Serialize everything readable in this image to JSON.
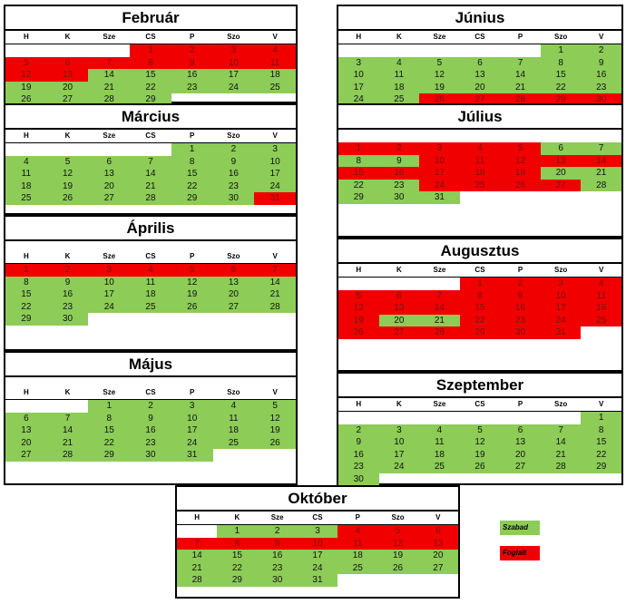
{
  "weekdays": [
    "H",
    "K",
    "Sze",
    "CS",
    "P",
    "Szo",
    "V"
  ],
  "legend": {
    "free_label": "Szabad",
    "busy_label": "Foglalt",
    "free_color": "#8ccc57",
    "busy_color": "#f00000"
  },
  "months": [
    {
      "id": "februar",
      "title": "Február",
      "offset": 3,
      "days": 29,
      "busy": [
        1,
        2,
        3,
        4,
        5,
        6,
        7,
        8,
        9,
        10,
        11,
        12,
        13
      ]
    },
    {
      "id": "marcius",
      "title": "Március",
      "offset": 4,
      "days": 31,
      "busy": [
        31
      ]
    },
    {
      "id": "aprilis",
      "title": "Április",
      "offset": 0,
      "days": 30,
      "busy": [
        1,
        2,
        3,
        4,
        5,
        6,
        7
      ]
    },
    {
      "id": "majus",
      "title": "Május",
      "offset": 2,
      "days": 31,
      "busy": []
    },
    {
      "id": "junius",
      "title": "Június",
      "offset": 5,
      "days": 30,
      "busy": [
        26,
        27,
        28,
        29,
        30
      ]
    },
    {
      "id": "julius",
      "title": "Július",
      "offset": 0,
      "days": 31,
      "busy": [
        1,
        2,
        3,
        4,
        5,
        10,
        11,
        12,
        13,
        14,
        15,
        16,
        17,
        18,
        19,
        24,
        25,
        26,
        27
      ]
    },
    {
      "id": "augusztus",
      "title": "Augusztus",
      "offset": 3,
      "days": 31,
      "busy": [
        1,
        2,
        3,
        4,
        5,
        6,
        7,
        8,
        9,
        10,
        11,
        12,
        13,
        14,
        15,
        16,
        17,
        18,
        19,
        22,
        23,
        24,
        25,
        26,
        27,
        28,
        29,
        30,
        31
      ]
    },
    {
      "id": "szeptember",
      "title": "Szeptember",
      "offset": 6,
      "days": 30,
      "busy": []
    },
    {
      "id": "oktober",
      "title": "Október",
      "offset": 1,
      "days": 31,
      "busy": [
        4,
        5,
        6,
        7,
        8,
        9,
        10,
        11,
        12,
        13
      ]
    }
  ]
}
